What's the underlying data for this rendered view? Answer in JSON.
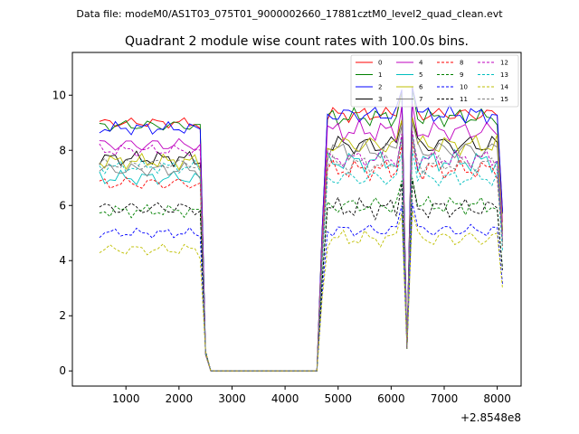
{
  "chart_data": {
    "type": "line",
    "suptitle": "Data file: modeM0/AS1T03_075T01_9000002660_17881cztM0_level2_quad_clean.evt",
    "title": "Quadrant 2 module wise count rates with 100.0s bins.",
    "xlabel": "",
    "ylabel": "",
    "x_offset_label": "+2.8548e8",
    "xlim": [
      -10,
      8450
    ],
    "ylim": [
      -0.55,
      11.55
    ],
    "xticks": [
      1000,
      2000,
      3000,
      4000,
      5000,
      6000,
      7000,
      8000
    ],
    "xtick_labels": [
      "1000",
      "2000",
      "3000",
      "4000",
      "5000",
      "6000",
      "7000",
      "8000"
    ],
    "yticks": [
      0,
      2,
      4,
      6,
      8,
      10
    ],
    "ytick_labels": [
      "0",
      "2",
      "4",
      "6",
      "8",
      "10"
    ],
    "legend_position": "top-right",
    "x_segments": [
      [
        500,
        8100,
        100
      ]
    ],
    "series": [
      {
        "name": "0",
        "color": "#ff0000",
        "dash": "solid",
        "a": 9.0,
        "b": 9.3,
        "amp": 0.22
      },
      {
        "name": "1",
        "color": "#008000",
        "dash": "solid",
        "a": 8.9,
        "b": 9.2,
        "amp": 0.25
      },
      {
        "name": "2",
        "color": "#0000ff",
        "dash": "solid",
        "a": 8.8,
        "b": 9.3,
        "amp": 0.25
      },
      {
        "name": "3",
        "color": "#000000",
        "dash": "solid",
        "a": 7.7,
        "b": 8.2,
        "amp": 0.3
      },
      {
        "name": "4",
        "color": "#bf00bf",
        "dash": "solid",
        "a": 8.2,
        "b": 8.7,
        "amp": 0.3
      },
      {
        "name": "5",
        "color": "#00bfbf",
        "dash": "solid",
        "a": 7.0,
        "b": 7.6,
        "amp": 0.3
      },
      {
        "name": "6",
        "color": "#bfbf00",
        "dash": "solid",
        "a": 7.6,
        "b": 8.2,
        "amp": 0.3
      },
      {
        "name": "7",
        "color": "#808080",
        "dash": "solid",
        "a": 7.3,
        "b": 8.0,
        "amp": 0.3
      },
      {
        "name": "8",
        "color": "#ff0000",
        "dash": "dashed",
        "a": 6.8,
        "b": 7.3,
        "amp": 0.28
      },
      {
        "name": "9",
        "color": "#008000",
        "dash": "dashed",
        "a": 5.8,
        "b": 6.0,
        "amp": 0.25
      },
      {
        "name": "10",
        "color": "#0000ff",
        "dash": "dashed",
        "a": 5.0,
        "b": 5.1,
        "amp": 0.2
      },
      {
        "name": "11",
        "color": "#000000",
        "dash": "dashed",
        "a": 5.9,
        "b": 5.9,
        "amp": 0.3
      },
      {
        "name": "12",
        "color": "#bf00bf",
        "dash": "dashed",
        "a": 8.0,
        "b": 7.7,
        "amp": 0.25
      },
      {
        "name": "13",
        "color": "#00bfbf",
        "dash": "dashed",
        "a": 7.4,
        "b": 7.0,
        "amp": 0.25
      },
      {
        "name": "14",
        "color": "#bfbf00",
        "dash": "dashed",
        "a": 4.4,
        "b": 4.8,
        "amp": 0.25
      },
      {
        "name": "15",
        "color": "#808080",
        "dash": "dashed",
        "a": 7.5,
        "b": 7.5,
        "amp": 0.25
      }
    ],
    "events": {
      "drop_start": 2400,
      "zero_start": 2600,
      "zero_end": 4600,
      "rise_end": 4800,
      "dip_near": 6300,
      "last_point": 8100
    }
  }
}
